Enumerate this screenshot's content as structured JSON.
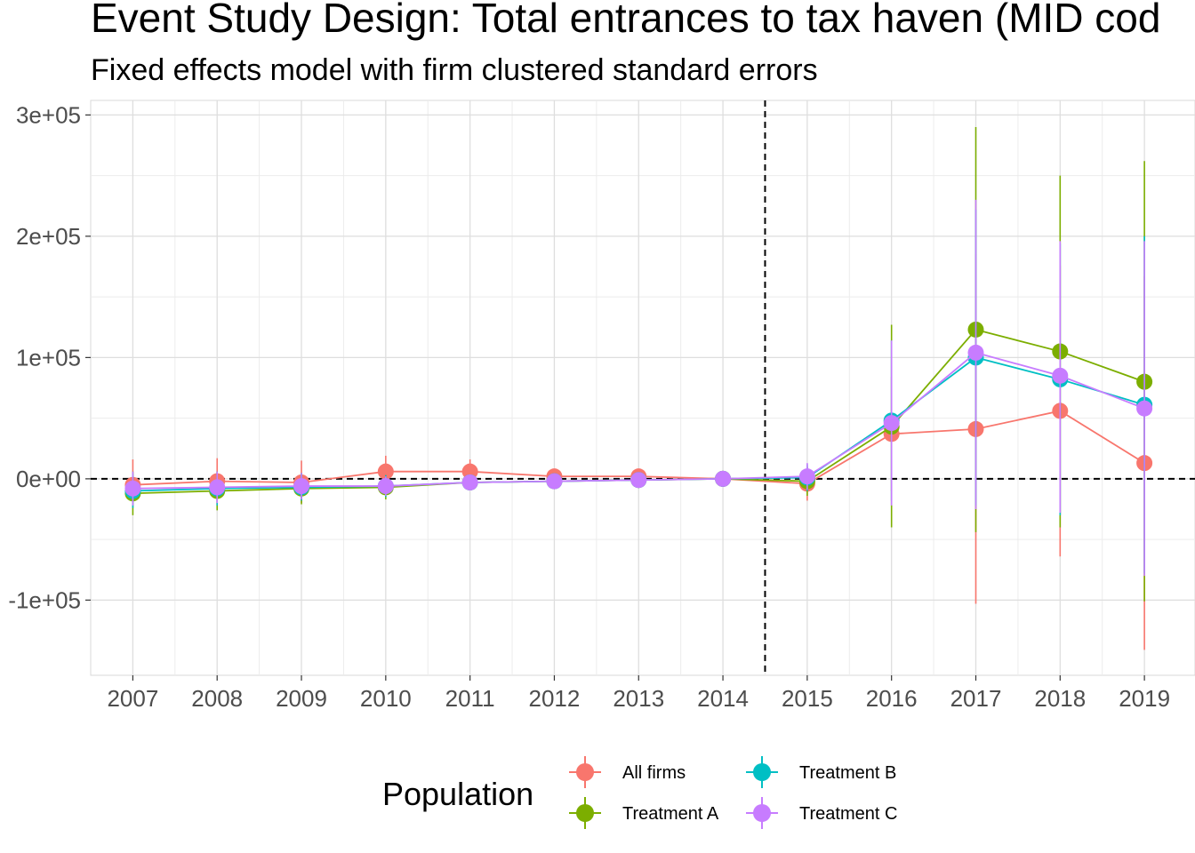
{
  "chart_data": {
    "type": "line",
    "title": "Event Study Design: Total entrances to tax haven (MID cod",
    "subtitle": "Fixed effects model with firm clustered standard errors",
    "xlabel": "",
    "ylabel": "",
    "x": [
      2007,
      2008,
      2009,
      2010,
      2011,
      2012,
      2013,
      2014,
      2015,
      2016,
      2017,
      2018,
      2019
    ],
    "xlim": [
      2006.5,
      2019.6
    ],
    "ylim": [
      -162000,
      312000
    ],
    "y_ticks": [
      300000,
      200000,
      100000,
      0,
      -100000
    ],
    "y_tick_labels": [
      "3e+05",
      "2e+05",
      "1e+05",
      "0e+00",
      "-1e+05"
    ],
    "grid": true,
    "reference_lines": {
      "horizontal": 0,
      "vertical": 2014.5,
      "style": "dashed"
    },
    "legend": {
      "title": "Population",
      "position": "bottom"
    },
    "series": [
      {
        "name": "All firms",
        "color": "#F8766D",
        "values": [
          -5000,
          -2000,
          -3000,
          6000,
          6000,
          2000,
          2000,
          0,
          -4000,
          37000,
          41000,
          56000,
          13000
        ],
        "lower": [
          -18000,
          -20000,
          -20000,
          -7000,
          -3000,
          -3000,
          -3000,
          0,
          -18000,
          -10000,
          -103000,
          -64000,
          -141000
        ],
        "upper": [
          16000,
          17000,
          15000,
          19000,
          16000,
          7000,
          7000,
          0,
          8000,
          84000,
          185000,
          176000,
          167000
        ]
      },
      {
        "name": "Treatment A",
        "color": "#7CAE00",
        "values": [
          -12000,
          -10000,
          -8000,
          -7000,
          -3000,
          -2000,
          -1000,
          0,
          -2000,
          43000,
          123000,
          105000,
          80000
        ],
        "lower": [
          -30000,
          -26000,
          -21000,
          -17000,
          -9000,
          -7000,
          -6000,
          0,
          -14000,
          -40000,
          -44000,
          -40000,
          -101000
        ],
        "upper": [
          6000,
          6000,
          5000,
          3000,
          3000,
          3000,
          4000,
          0,
          10000,
          127000,
          290000,
          250000,
          262000
        ]
      },
      {
        "name": "Treatment B",
        "color": "#00BFC4",
        "values": [
          -10000,
          -8000,
          -7000,
          -6000,
          -3000,
          -2000,
          -1000,
          0,
          1000,
          48000,
          100000,
          82000,
          61000
        ],
        "lower": [
          -24000,
          -22000,
          -18000,
          -15000,
          -8000,
          -7000,
          -6000,
          0,
          -10000,
          -18000,
          -22000,
          -30000,
          -78000
        ],
        "upper": [
          4000,
          6000,
          4000,
          3000,
          2000,
          3000,
          4000,
          0,
          12000,
          114000,
          222000,
          194000,
          200000
        ]
      },
      {
        "name": "Treatment C",
        "color": "#C77CFF",
        "values": [
          -8000,
          -7000,
          -6000,
          -6000,
          -3000,
          -2000,
          -1000,
          0,
          2000,
          46000,
          104000,
          85000,
          58000
        ],
        "lower": [
          -22000,
          -20000,
          -17000,
          -14000,
          -8000,
          -7000,
          -6000,
          0,
          -9000,
          -22000,
          -25000,
          -28000,
          -80000
        ],
        "upper": [
          6000,
          6000,
          5000,
          2000,
          2000,
          3000,
          4000,
          0,
          13000,
          114000,
          230000,
          196000,
          196000
        ]
      }
    ]
  }
}
